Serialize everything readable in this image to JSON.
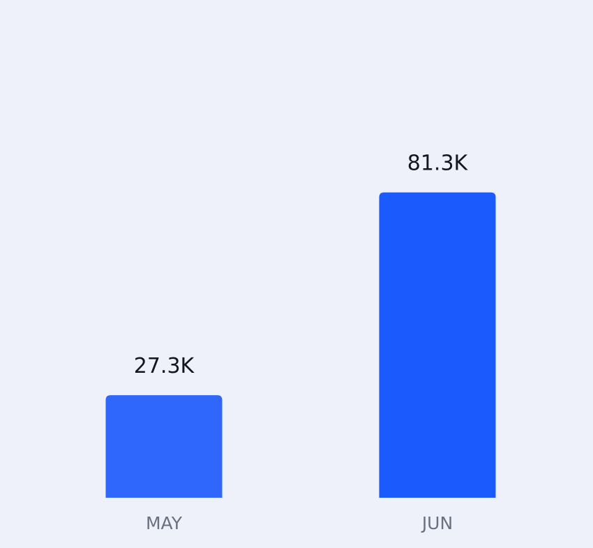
{
  "chart_data": {
    "type": "bar",
    "categories": [
      "MAY",
      "JUN"
    ],
    "values": [
      27300,
      81300
    ],
    "value_labels": [
      "27.3K",
      "81.3K"
    ],
    "title": "",
    "xlabel": "",
    "ylabel": "",
    "ylim": [
      0,
      100000
    ],
    "grid": false,
    "legend": "none",
    "bar_colors": [
      "#2f66fb",
      "#1b5bfd"
    ],
    "background_color": "#eef1fa"
  }
}
